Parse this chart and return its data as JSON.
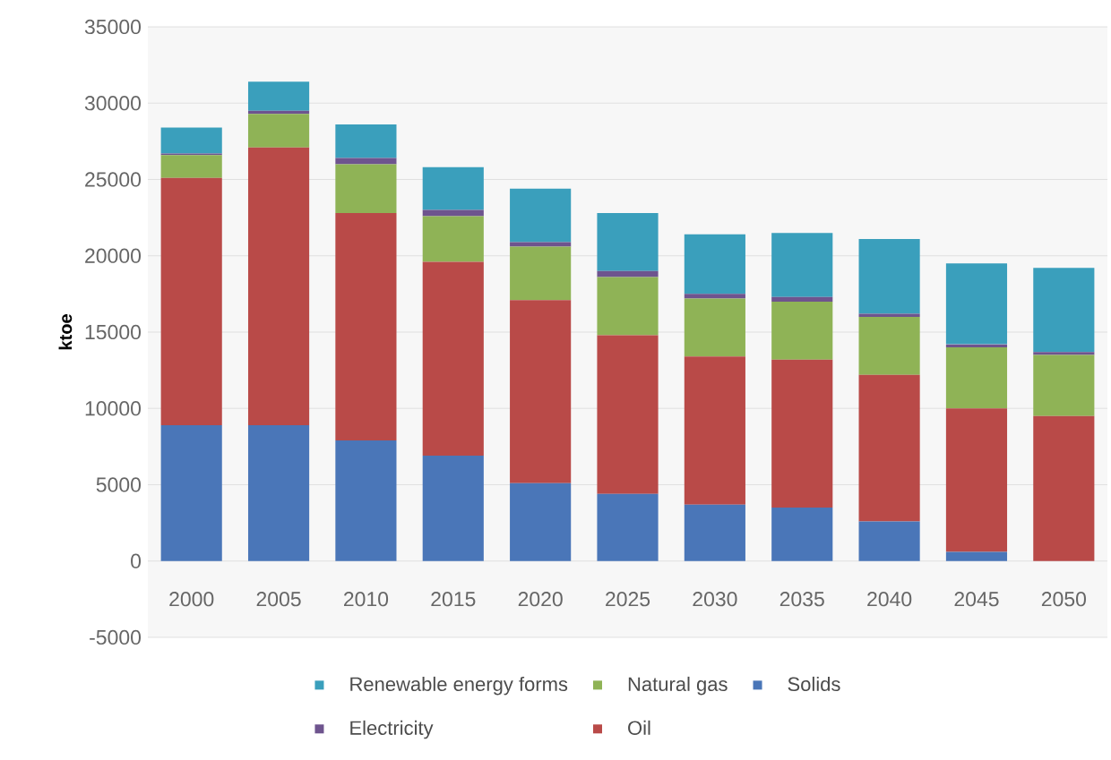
{
  "chart_data": {
    "type": "bar",
    "stacked": true,
    "ylabel": "ktoe",
    "categories": [
      "2000",
      "2005",
      "2010",
      "2015",
      "2020",
      "2025",
      "2030",
      "2035",
      "2040",
      "2045",
      "2050"
    ],
    "series": [
      {
        "name": "Solids",
        "color": "#4a76b8",
        "values": [
          8900,
          8900,
          7900,
          6900,
          5100,
          4400,
          3700,
          3500,
          2600,
          600,
          0
        ]
      },
      {
        "name": "Oil",
        "color": "#b94a48",
        "values": [
          16200,
          18200,
          14900,
          12700,
          12000,
          10400,
          9700,
          9700,
          9600,
          9400,
          9500
        ]
      },
      {
        "name": "Natural gas",
        "color": "#8fb356",
        "values": [
          1500,
          2200,
          3200,
          3000,
          3500,
          3800,
          3800,
          3800,
          3800,
          4000,
          4000
        ]
      },
      {
        "name": "Electricity",
        "color": "#6e548e",
        "values": [
          100,
          200,
          400,
          400,
          300,
          400,
          300,
          300,
          200,
          200,
          200
        ]
      },
      {
        "name": "Renewable energy forms",
        "color": "#3a9fbc",
        "values": [
          1700,
          1900,
          2200,
          2800,
          3500,
          3800,
          3900,
          4200,
          4900,
          5300,
          5500
        ]
      }
    ],
    "ylim": [
      -5000,
      35000
    ],
    "yticks": [
      -5000,
      0,
      5000,
      10000,
      15000,
      20000,
      25000,
      30000,
      35000
    ],
    "grid": "y",
    "legend": "bottom"
  }
}
